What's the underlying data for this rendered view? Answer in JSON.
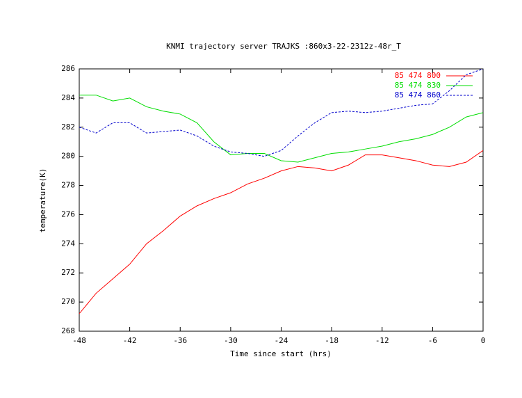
{
  "chart_data": {
    "type": "line",
    "title": "KNMI trajectory server TRAJKS :860x3-22-2312z-48r_T",
    "x_label": "Time since start (hrs)",
    "y_label": "temperature(K)",
    "x": [
      -48,
      -46,
      -44,
      -42,
      -40,
      -38,
      -36,
      -34,
      -32,
      -30,
      -28,
      -26,
      -24,
      -22,
      -20,
      -18,
      -16,
      -14,
      -12,
      -10,
      -8,
      -6,
      -4,
      -2,
      0
    ],
    "series": [
      {
        "name": "85 474 800",
        "color": "#ff0000",
        "line_style": "solid",
        "values": [
          269.2,
          270.6,
          271.6,
          272.6,
          274.0,
          274.9,
          275.9,
          276.6,
          277.1,
          277.5,
          278.1,
          278.5,
          279.0,
          279.3,
          279.2,
          279.0,
          279.4,
          280.1,
          280.1,
          279.9,
          279.7,
          279.4,
          279.3,
          279.6,
          280.4
        ]
      },
      {
        "name": "85 474 830",
        "color": "#00dd00",
        "line_style": "solid",
        "values": [
          284.2,
          284.2,
          283.8,
          284.0,
          283.4,
          283.1,
          282.9,
          282.3,
          281.0,
          280.1,
          280.2,
          280.2,
          279.7,
          279.6,
          279.9,
          280.2,
          280.3,
          280.5,
          280.7,
          281.0,
          281.2,
          281.5,
          282.0,
          282.7,
          283.0
        ]
      },
      {
        "name": "85 474 860",
        "color": "#0000cc",
        "line_style": "dashed",
        "values": [
          282.0,
          281.6,
          282.3,
          282.3,
          281.6,
          281.7,
          281.8,
          281.4,
          280.7,
          280.3,
          280.2,
          280.0,
          280.4,
          281.4,
          282.3,
          283.0,
          283.1,
          283.0,
          283.1,
          283.3,
          283.5,
          283.6,
          284.5,
          285.6,
          286.0
        ]
      }
    ],
    "xlim": [
      -48,
      0
    ],
    "xticks": [
      -48,
      -42,
      -36,
      -30,
      -24,
      -18,
      -12,
      -6,
      0
    ],
    "ylim": [
      268,
      286
    ],
    "yticks": [
      268,
      270,
      272,
      274,
      276,
      278,
      280,
      282,
      284,
      286
    ],
    "legend": "top-right"
  }
}
